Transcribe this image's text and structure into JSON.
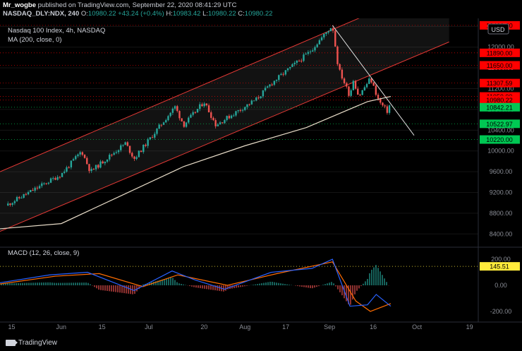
{
  "header": {
    "publisher": "Mr_wogbe",
    "published_text": "published on TradingView.com, September 22, 2020 08:41:29 UTC",
    "symbol": "NASDAQ_DLY:NDX, 240",
    "open_label": "O:",
    "open": "10980.22",
    "change": "+43.24 (+0.4%)",
    "high_label": "H:",
    "high": "10983.42",
    "low_label": "L:",
    "low": "10980.22",
    "close_label": "C:",
    "close": "10980.22"
  },
  "legend": {
    "title": "Nasdaq 100 Index, 4h, NASDAQ",
    "ma": "MA (200, close, 0)",
    "macd": "MACD (12, 26, close, 9)"
  },
  "currency": "USD",
  "footer": {
    "brand": "TradingView"
  },
  "colors": {
    "up": "#26a69a",
    "down": "#ef5350",
    "channel": "#e53935",
    "ma": "#e8dcc8",
    "macd": "#2962ff",
    "signal": "#ff6d00",
    "red_label": "#ff0000",
    "green_label": "#00c853",
    "yellow_label": "#ffeb3b"
  },
  "chart_data": [
    {
      "type": "candlestick",
      "title": "Nasdaq 100 Index, 4h, NASDAQ",
      "x_ticks": [
        "15",
        "Jun",
        "15",
        "Jul",
        "20",
        "Aug",
        "17",
        "Sep",
        "16",
        "Oct",
        "19"
      ],
      "y_ticks": [
        12400,
        12000,
        11600,
        11200,
        10800,
        10400,
        10000,
        9600,
        9200,
        8800,
        8400
      ],
      "ylim": [
        8200,
        12500
      ],
      "price_labels": [
        {
          "value": 12420.0,
          "text": "12420.00",
          "kind": "red"
        },
        {
          "value": 11890.0,
          "text": "11890.00",
          "kind": "red"
        },
        {
          "value": 11650.0,
          "text": "11650.00",
          "kind": "red"
        },
        {
          "value": 11307.59,
          "text": "11307.59",
          "kind": "red"
        },
        {
          "value": 11050.0,
          "text": "11050.00",
          "kind": "red"
        },
        {
          "value": 10980.22,
          "text": "10980.22",
          "kind": "red"
        },
        {
          "value": 10842.21,
          "text": "10842.21",
          "kind": "green"
        },
        {
          "value": 10522.97,
          "text": "10522.97",
          "kind": "green"
        },
        {
          "value": 10220.0,
          "text": "10220.00",
          "kind": "green"
        }
      ],
      "key_points": [
        {
          "date": "2020-05-13",
          "close": 8950
        },
        {
          "date": "2020-06-01",
          "close": 9550
        },
        {
          "date": "2020-06-08",
          "close": 10000
        },
        {
          "date": "2020-06-11",
          "close": 9600
        },
        {
          "date": "2020-06-23",
          "close": 10150
        },
        {
          "date": "2020-06-26",
          "close": 9850
        },
        {
          "date": "2020-07-10",
          "close": 10850
        },
        {
          "date": "2020-07-13",
          "close": 10500
        },
        {
          "date": "2020-07-20",
          "close": 10950
        },
        {
          "date": "2020-07-24",
          "close": 10500
        },
        {
          "date": "2020-08-07",
          "close": 11000
        },
        {
          "date": "2020-08-12",
          "close": 11300
        },
        {
          "date": "2020-08-25",
          "close": 11900
        },
        {
          "date": "2020-09-02",
          "close": 12420
        },
        {
          "date": "2020-09-04",
          "close": 11600
        },
        {
          "date": "2020-09-08",
          "close": 11050
        },
        {
          "date": "2020-09-09",
          "close": 11400
        },
        {
          "date": "2020-09-11",
          "close": 11050
        },
        {
          "date": "2020-09-15",
          "close": 11400
        },
        {
          "date": "2020-09-18",
          "close": 10950
        },
        {
          "date": "2020-09-21",
          "close": 10750
        },
        {
          "date": "2020-09-22",
          "close": 10980
        }
      ],
      "moving_average": [
        {
          "date": "2020-05-11",
          "value": 8500
        },
        {
          "date": "2020-06-01",
          "value": 8600
        },
        {
          "date": "2020-06-22",
          "value": 9150
        },
        {
          "date": "2020-07-13",
          "value": 9700
        },
        {
          "date": "2020-08-03",
          "value": 10100
        },
        {
          "date": "2020-08-24",
          "value": 10450
        },
        {
          "date": "2020-09-14",
          "value": 10950
        },
        {
          "date": "2020-09-22",
          "value": 11050
        }
      ],
      "channel": {
        "upper": [
          {
            "date": "2020-05-11",
            "value": 9600
          },
          {
            "date": "2020-10-12",
            "value": 13300
          }
        ],
        "lower": [
          {
            "date": "2020-05-11",
            "value": 8450
          },
          {
            "date": "2020-10-12",
            "value": 12100
          }
        ]
      },
      "trendline": [
        {
          "date": "2020-09-02",
          "value": 12420
        },
        {
          "date": "2020-09-30",
          "value": 10300
        }
      ]
    },
    {
      "type": "macd",
      "title": "MACD (12, 26, close, 9)",
      "y_ticks": [
        200,
        0,
        -200
      ],
      "ylim": [
        -260,
        260
      ],
      "current_value_label": "145.51",
      "macd": [
        {
          "date": "2020-05-11",
          "value": 20
        },
        {
          "date": "2020-05-28",
          "value": 80
        },
        {
          "date": "2020-06-10",
          "value": 100
        },
        {
          "date": "2020-06-26",
          "value": -40
        },
        {
          "date": "2020-07-09",
          "value": 110
        },
        {
          "date": "2020-07-17",
          "value": 40
        },
        {
          "date": "2020-07-27",
          "value": -30
        },
        {
          "date": "2020-08-12",
          "value": 100
        },
        {
          "date": "2020-08-26",
          "value": 130
        },
        {
          "date": "2020-09-02",
          "value": 200
        },
        {
          "date": "2020-09-08",
          "value": -160
        },
        {
          "date": "2020-09-14",
          "value": -150
        },
        {
          "date": "2020-09-17",
          "value": -70
        },
        {
          "date": "2020-09-22",
          "value": -160
        }
      ],
      "signal": [
        {
          "date": "2020-05-11",
          "value": 10
        },
        {
          "date": "2020-05-30",
          "value": 70
        },
        {
          "date": "2020-06-14",
          "value": 90
        },
        {
          "date": "2020-06-29",
          "value": -10
        },
        {
          "date": "2020-07-11",
          "value": 80
        },
        {
          "date": "2020-07-28",
          "value": 0
        },
        {
          "date": "2020-08-14",
          "value": 90
        },
        {
          "date": "2020-09-02",
          "value": 180
        },
        {
          "date": "2020-09-10",
          "value": -120
        },
        {
          "date": "2020-09-15",
          "value": -200
        },
        {
          "date": "2020-09-22",
          "value": -140
        }
      ]
    }
  ]
}
